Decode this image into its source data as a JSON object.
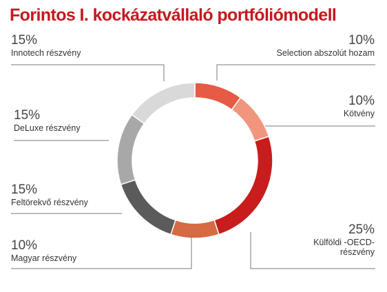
{
  "chart_data": {
    "type": "pie",
    "title": "Forintos I. kockázatvállaló portfóliómodell",
    "donut": true,
    "categories": [
      "Selection abszolút hozam",
      "Kötvény",
      "Külföldi -OECD-\nrészvény",
      "Magyar részvény",
      "Feltörekvő részvény",
      "DeLuxe részvény",
      "Innotech részvény"
    ],
    "values": [
      10,
      10,
      25,
      10,
      15,
      15,
      15
    ],
    "labels": [
      "10%",
      "10%",
      "25%",
      "10%",
      "15%",
      "15%",
      "15%"
    ],
    "colors": [
      "#e75a45",
      "#f1957d",
      "#c81d1d",
      "#d56a43",
      "#5b5b5b",
      "#a8a8a8",
      "#d9d9d9"
    ]
  }
}
